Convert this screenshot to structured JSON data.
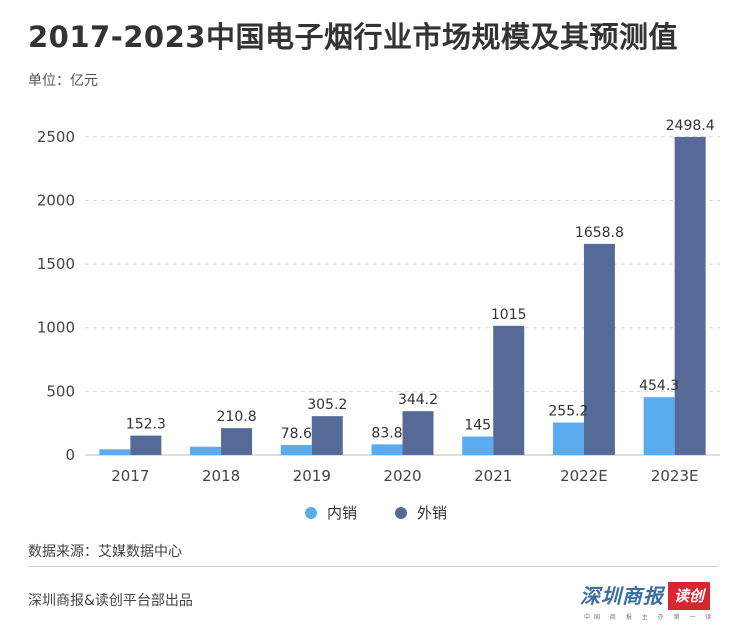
{
  "header": {
    "title": "2017-2023中国电子烟行业市场规模及其预测值",
    "unit": "单位：亿元"
  },
  "colors": {
    "domestic": "#5aabf0",
    "export": "#566a98",
    "grid": "#d6d6d6",
    "axis": "#bbbbbb"
  },
  "chart_data": {
    "type": "bar",
    "categories": [
      "2017",
      "2018",
      "2019",
      "2020",
      "2021",
      "2022E",
      "2023E"
    ],
    "series": [
      {
        "name": "内销",
        "values": [
          null,
          null,
          78.6,
          83.8,
          145,
          255.2,
          454.3
        ],
        "estimated_values": [
          45,
          65,
          78.6,
          83.8,
          145,
          255.2,
          454.3
        ]
      },
      {
        "name": "外销",
        "values": [
          152.3,
          210.8,
          305.2,
          344.2,
          1015,
          1658.8,
          2498.4
        ]
      }
    ],
    "data_labels": {
      "domestic": [
        "",
        "",
        "78.6",
        "83.8",
        "145",
        "255.2",
        "454.3"
      ],
      "export": [
        "152.3",
        "210.8",
        "305.2",
        "344.2",
        "1015",
        "1658.8",
        "2498.4"
      ]
    },
    "yticks": [
      "0",
      "500",
      "1000",
      "1500",
      "2000",
      "2500"
    ],
    "ylim": [
      0,
      2550
    ],
    "grid": true,
    "legend": "bottom"
  },
  "legend": {
    "domestic": "内销",
    "export": "外销"
  },
  "source": "数据来源：艾媒数据中心",
  "footer": "深圳商报&读创平台部出品",
  "logo": {
    "main": "深圳商报",
    "badge": "读创",
    "tagline": "中国 商 报 主 办 第 一 读"
  }
}
